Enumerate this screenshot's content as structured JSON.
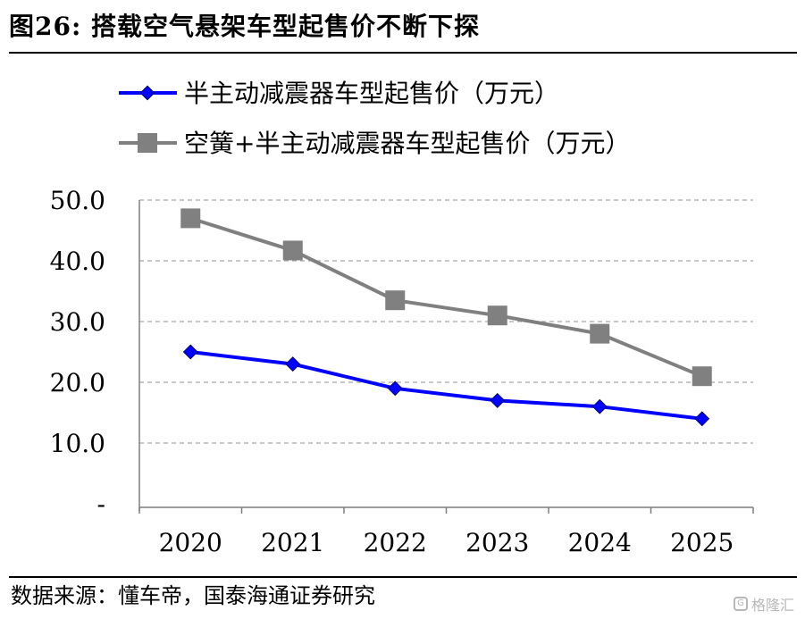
{
  "figure": {
    "title": "图26:  搭载空气悬架车型起售价不断下探",
    "source": "数据来源：懂车帝，国泰海通证券研究",
    "watermark": "格隆汇"
  },
  "chart_data": {
    "type": "line",
    "x": [
      "2020",
      "2021",
      "2022",
      "2023",
      "2024",
      "2025"
    ],
    "series": [
      {
        "name": "半主动减震器车型起售价（万元）",
        "values": [
          25.0,
          23.0,
          19.0,
          17.0,
          16.0,
          14.0
        ],
        "color": "#0000ff",
        "marker": "diamond"
      },
      {
        "name": "空簧+半主动减震器车型起售价（万元）",
        "values": [
          47.0,
          41.7,
          33.5,
          31.0,
          28.0,
          21.0
        ],
        "color": "#808080",
        "marker": "square"
      }
    ],
    "ylim": [
      0,
      50
    ],
    "yticks": [
      "-",
      "10.0",
      "20.0",
      "30.0",
      "40.0",
      "50.0"
    ],
    "grid": true,
    "legend_position": "top-left",
    "xlabel": "",
    "ylabel": ""
  }
}
